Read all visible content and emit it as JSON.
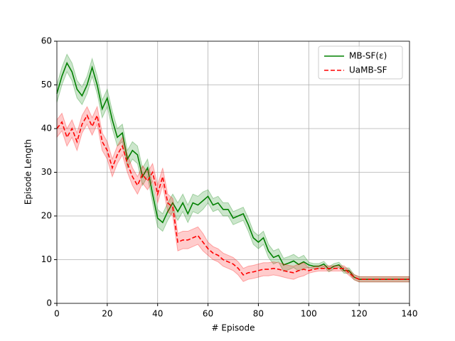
{
  "chart_data": {
    "type": "line",
    "xlabel": "# Episode",
    "ylabel": "Episode Length",
    "x": [
      0,
      2,
      4,
      6,
      8,
      10,
      12,
      14,
      16,
      18,
      20,
      22,
      24,
      26,
      28,
      30,
      32,
      34,
      36,
      38,
      40,
      42,
      44,
      46,
      48,
      50,
      52,
      54,
      56,
      58,
      60,
      62,
      64,
      66,
      68,
      70,
      72,
      74,
      76,
      78,
      80,
      82,
      84,
      86,
      88,
      90,
      92,
      94,
      96,
      98,
      100,
      102,
      104,
      106,
      108,
      110,
      112,
      114,
      116,
      118,
      120,
      122,
      124,
      126,
      128,
      130,
      132,
      134,
      136,
      138,
      140
    ],
    "series": [
      {
        "name": "MB-SF(ε)",
        "color": "#008000",
        "linestyle": "solid",
        "values": [
          48,
          52,
          55,
          53,
          49,
          47.5,
          50,
          54,
          50,
          44.5,
          47,
          42,
          38,
          39,
          33,
          35,
          34,
          29,
          31,
          25,
          19.5,
          18.5,
          21,
          23,
          21,
          23,
          20.5,
          23,
          22.5,
          23.5,
          24.5,
          22.5,
          23,
          21.5,
          21.5,
          19.5,
          20,
          20.5,
          18,
          15,
          14,
          15,
          12,
          10.5,
          11,
          8.8,
          9.2,
          9.7,
          8.9,
          9.5,
          8.8,
          8.5,
          8.5,
          9,
          7.8,
          8.5,
          8.8,
          7.5,
          7.5,
          6,
          5.5,
          5.5,
          5.5,
          5.5,
          5.5,
          5.5,
          5.5,
          5.5,
          5.5,
          5.5,
          5.5
        ],
        "error": [
          2,
          2,
          2,
          2,
          2,
          2,
          2,
          2,
          2,
          2,
          2,
          2,
          2,
          2,
          2,
          2,
          2,
          2,
          2,
          2,
          2,
          2,
          2,
          2,
          2,
          2,
          2,
          2,
          2,
          2,
          1.5,
          1.5,
          1.5,
          1.5,
          1.5,
          1.5,
          1.5,
          1.5,
          1.5,
          1.5,
          1.5,
          1.5,
          1.5,
          1.5,
          1.5,
          1.5,
          1.5,
          1.5,
          1.5,
          1.5,
          0.6,
          0.6,
          0.6,
          0.6,
          0.6,
          0.6,
          0.6,
          0.6,
          0.6,
          0.6,
          0.6,
          0.6,
          0.6,
          0.6,
          0.6,
          0.6,
          0.6,
          0.6,
          0.6,
          0.6,
          0.6
        ]
      },
      {
        "name": "UaMB-SF",
        "color": "#ff0000",
        "linestyle": "dashed",
        "values": [
          40,
          41.5,
          38,
          40,
          37,
          41,
          43,
          40.5,
          43,
          37,
          35,
          31,
          34,
          36,
          32,
          29,
          27,
          29.5,
          28,
          30,
          25,
          29,
          23,
          22,
          14,
          14.5,
          14.5,
          15,
          15.5,
          14,
          12.5,
          11.5,
          11,
          10,
          9.5,
          9,
          8,
          6.5,
          7,
          7.2,
          7.5,
          7.8,
          7.8,
          8,
          7.8,
          7.5,
          7.2,
          7,
          7.5,
          7.8,
          7.5,
          7.8,
          8,
          8,
          8,
          8,
          8,
          8,
          7,
          6,
          5.5,
          5.5,
          5.5,
          5.5,
          5.5,
          5.5,
          5.5,
          5.5,
          5.5,
          5.5,
          5.5
        ],
        "error": [
          2,
          2,
          2,
          2,
          2,
          2,
          2,
          2,
          2,
          2,
          2,
          2,
          2,
          2,
          2,
          2,
          2,
          2,
          2,
          2,
          2,
          2,
          2,
          2,
          2,
          2,
          2,
          2,
          2,
          2,
          1.5,
          1.5,
          1.5,
          1.5,
          1.5,
          1.5,
          1.5,
          1.5,
          1.5,
          1.5,
          1.5,
          1.5,
          1.5,
          1.5,
          1.5,
          1.5,
          1.5,
          1.5,
          1.5,
          1.5,
          0.6,
          0.6,
          0.6,
          0.6,
          0.6,
          0.6,
          0.6,
          0.6,
          0.6,
          0.6,
          0.6,
          0.6,
          0.6,
          0.6,
          0.6,
          0.6,
          0.6,
          0.6,
          0.6,
          0.6,
          0.6
        ]
      }
    ],
    "xlim": [
      0,
      140
    ],
    "xticks": [
      0,
      20,
      40,
      60,
      80,
      100,
      120,
      140
    ],
    "ylim": [
      0,
      60
    ],
    "yticks": [
      0,
      10,
      20,
      30,
      40,
      50,
      60
    ],
    "grid": true,
    "legend": "upper right"
  }
}
